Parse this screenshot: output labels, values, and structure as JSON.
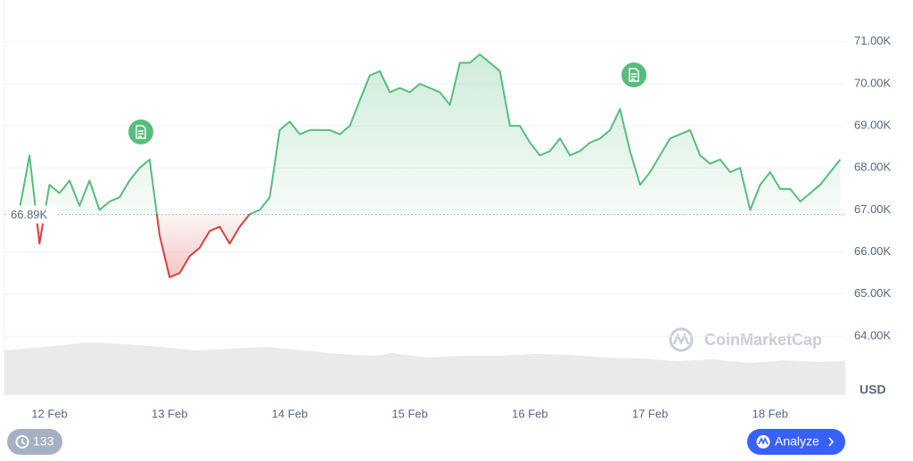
{
  "chart_data": {
    "type": "line",
    "categories": [
      null,
      null,
      null,
      null,
      "12 Feb",
      null,
      null,
      null,
      null,
      null,
      null,
      null,
      null,
      null,
      null,
      null,
      "13 Feb",
      null,
      null,
      null,
      null,
      null,
      null,
      null,
      null,
      null,
      null,
      null,
      "14 Feb",
      null,
      null,
      null,
      null,
      null,
      null,
      null,
      null,
      null,
      null,
      null,
      "15 Feb",
      null,
      null,
      null,
      null,
      null,
      null,
      null,
      null,
      null,
      null,
      null,
      "16 Feb",
      null,
      null,
      null,
      null,
      null,
      null,
      null,
      null,
      null,
      null,
      null,
      "17 Feb",
      null,
      null,
      null,
      null,
      null,
      null,
      null,
      null,
      null,
      null,
      null,
      "18 Feb",
      null,
      null,
      null,
      null,
      null,
      null,
      null
    ],
    "values": [
      66.7,
      67.0,
      68.3,
      66.2,
      67.6,
      67.4,
      67.7,
      67.1,
      67.7,
      67.0,
      67.2,
      67.3,
      67.7,
      68.0,
      68.2,
      66.4,
      65.4,
      65.5,
      65.9,
      66.1,
      66.5,
      66.6,
      66.2,
      66.6,
      66.9,
      67.0,
      67.3,
      68.9,
      69.1,
      68.8,
      68.9,
      68.9,
      68.9,
      68.8,
      69.0,
      69.6,
      70.2,
      70.3,
      69.8,
      69.9,
      69.8,
      70.0,
      69.9,
      69.8,
      69.5,
      70.5,
      70.5,
      70.7,
      70.5,
      70.3,
      69.0,
      69.0,
      68.6,
      68.3,
      68.4,
      68.7,
      68.3,
      68.4,
      68.6,
      68.7,
      68.9,
      69.4,
      68.4,
      67.6,
      67.9,
      68.3,
      68.7,
      68.8,
      68.9,
      68.3,
      68.1,
      68.2,
      67.9,
      68.0,
      67.0,
      67.6,
      67.9,
      67.5,
      67.5,
      67.2,
      67.4,
      67.6,
      67.9,
      68.2
    ],
    "color": "#57bd7c",
    "negative_color": "#d8403e",
    "baseline": {
      "value": 66.89,
      "label": "66.89K"
    },
    "ylim": [
      62.6,
      71.95
    ],
    "yticks": [
      {
        "value": 64,
        "label": "64.00K"
      },
      {
        "value": 65,
        "label": "65.00K"
      },
      {
        "value": 66,
        "label": "66.00K"
      },
      {
        "value": 67,
        "label": "67.00K"
      },
      {
        "value": 68,
        "label": "68.00K"
      },
      {
        "value": 69,
        "label": "69.00K"
      },
      {
        "value": 70,
        "label": "70.00K"
      },
      {
        "value": 71,
        "label": "71.00K"
      }
    ],
    "grid": true,
    "y_label": "USD",
    "watermark": "CoinMarketCap",
    "badge": 133,
    "button": "Analyze"
  }
}
